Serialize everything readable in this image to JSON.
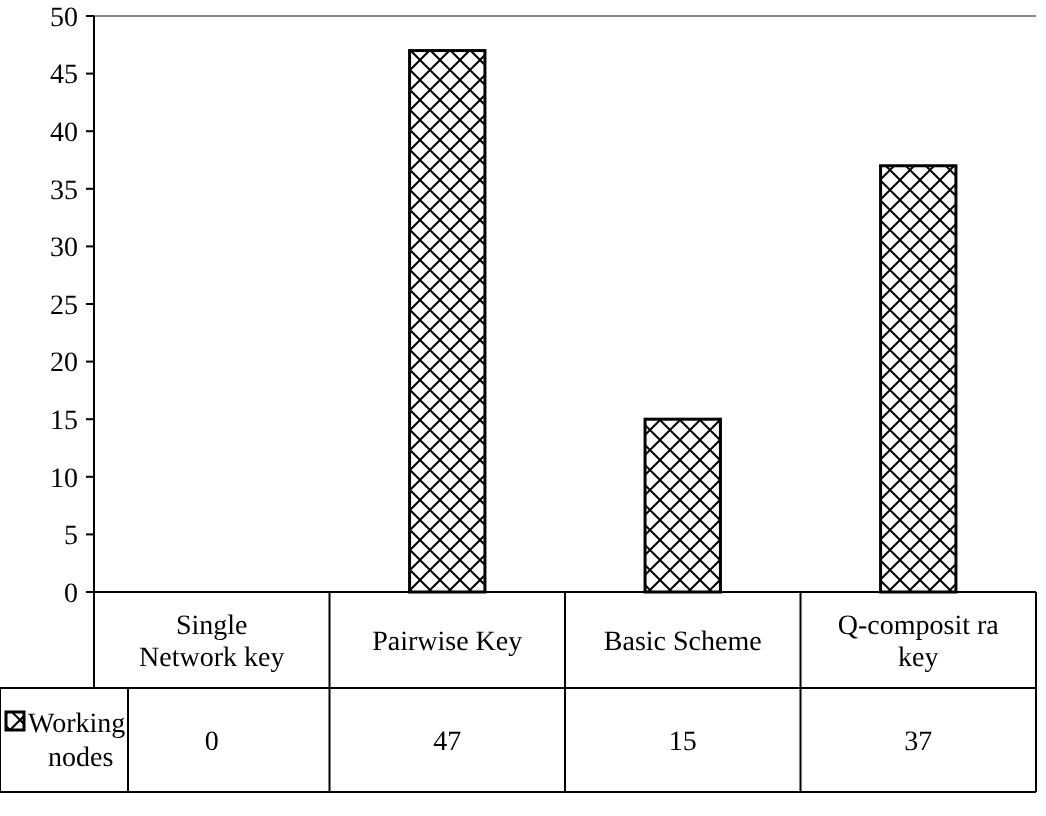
{
  "chart_data": {
    "type": "bar",
    "categories": [
      "Single Network key",
      "Pairwise Key",
      "Basic Scheme",
      "Q-composit ra key"
    ],
    "series": [
      {
        "name": "Working nodes",
        "color": "#000000",
        "values": [
          0,
          47,
          15,
          37
        ]
      }
    ],
    "ylim": [
      0,
      50
    ],
    "yticks": [
      0,
      5,
      10,
      15,
      20,
      25,
      30,
      35,
      40,
      45,
      50
    ],
    "grid": false,
    "legend": "bottom",
    "data_labels": true
  }
}
